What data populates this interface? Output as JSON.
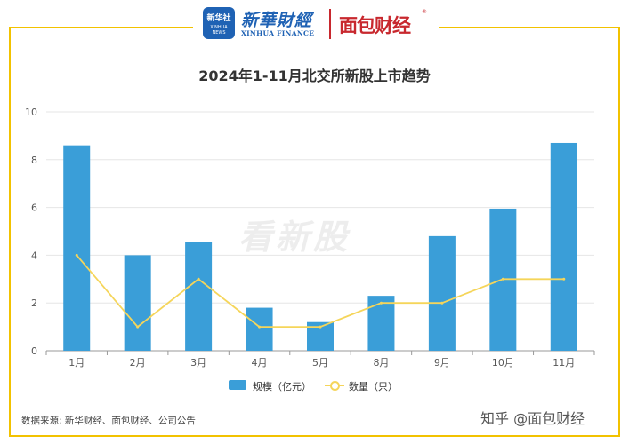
{
  "header": {
    "xinhua_badge_cn": "新华社",
    "xinhua_badge_en": "XINHUA NEWS",
    "xinhua_logo_cn": "新華財經",
    "xinhua_logo_en": "XINHUA FINANCE",
    "mianbao_logo": "面包财经",
    "registered_mark": "®"
  },
  "watermark": "看新股",
  "source": "数据来源: 新华财经、面包财经、公司公告",
  "zhihu": "知乎 @面包财经",
  "colors": {
    "bar": "#3a9ed8",
    "line": "#f5d55a",
    "frame": "#f2c200",
    "brand_red": "#c8282e",
    "brand_blue": "#1f62b4"
  },
  "chart_data": {
    "type": "bar",
    "title": "2024年1-11月北交所新股上市趋势",
    "categories": [
      "1月",
      "2月",
      "3月",
      "4月",
      "5月",
      "8月",
      "9月",
      "10月",
      "11月"
    ],
    "series": [
      {
        "name": "规模（亿元）",
        "type": "bar",
        "values": [
          8.6,
          4.0,
          4.55,
          1.8,
          1.2,
          2.3,
          4.8,
          5.95,
          8.7
        ]
      },
      {
        "name": "数量（只）",
        "type": "line",
        "values": [
          4,
          1,
          3,
          1,
          1,
          2,
          2,
          3,
          3
        ]
      }
    ],
    "ylim": [
      0,
      10
    ],
    "yticks": [
      0,
      2,
      4,
      6,
      8,
      10
    ],
    "grid": true,
    "legend_position": "bottom"
  }
}
